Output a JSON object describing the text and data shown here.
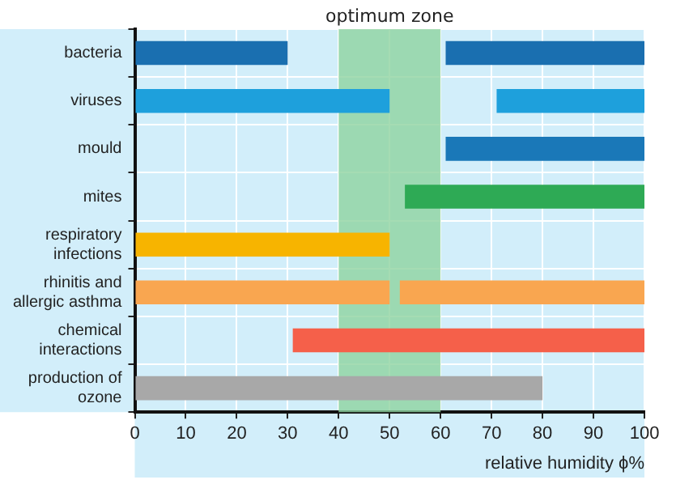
{
  "chart_data": {
    "type": "bar",
    "orientation": "horizontal",
    "categories": [
      "bacteria",
      "viruses",
      "mould",
      "mites",
      "respiratory infections",
      "rhinitis and allergic asthma",
      "chemical interactions",
      "production of ozone"
    ],
    "series": [
      {
        "base": [
          0,
          0,
          null,
          null,
          0,
          0,
          null,
          0
        ],
        "values": [
          30,
          50,
          null,
          null,
          50,
          50,
          null,
          80
        ],
        "colors": [
          "#1a6fb0",
          "#1ea0dc",
          "#1a6fb0",
          "#2eaa55",
          "#f7b400",
          "#f9a650",
          "#f5604a",
          "#a8a8a8"
        ]
      },
      {
        "base": [
          61,
          71,
          61,
          53,
          null,
          52,
          31,
          null
        ],
        "values": [
          39,
          29,
          39,
          47,
          null,
          48,
          69,
          null
        ],
        "colors": [
          "#1a6fb0",
          "#1ea0dc",
          "#1a78b8",
          "#2eaa55",
          "#f7b400",
          "#f9a650",
          "#f5604a",
          "#a8a8a8"
        ]
      }
    ],
    "xlabel": "relative humidity ϕ%",
    "xlim": [
      0,
      100
    ],
    "xticks": [
      0,
      10,
      20,
      30,
      40,
      50,
      60,
      70,
      80,
      90,
      100
    ],
    "bands": [
      {
        "axis": "x",
        "from": 40,
        "to": 60,
        "label": "optimum zone",
        "color": "#8fd3a0"
      }
    ],
    "grid": true,
    "legend": false
  }
}
